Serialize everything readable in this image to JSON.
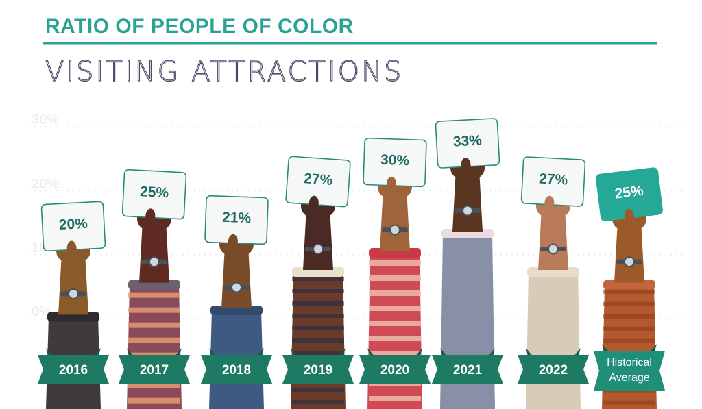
{
  "header": {
    "title": "RATIO OF PEOPLE OF COLOR",
    "subtitle": "VISITING ATTRACTIONS"
  },
  "colors": {
    "accent": "#2aa395",
    "ribbon": "#1f7a63",
    "card_text": "#1f6b62"
  },
  "chart_data": {
    "type": "bar",
    "title": "RATIO OF PEOPLE OF COLOR VISITING ATTRACTIONS",
    "categories": [
      "2016",
      "2017",
      "2018",
      "2019",
      "2020",
      "2021",
      "2022",
      "Historical Average"
    ],
    "values": [
      20,
      25,
      21,
      27,
      30,
      33,
      27,
      25
    ],
    "value_labels": [
      "20%",
      "25%",
      "21%",
      "27%",
      "30%",
      "33%",
      "27%",
      "25%"
    ],
    "y_ticks": [
      "0%",
      "10%",
      "20%",
      "30%"
    ],
    "ylim": [
      0,
      30
    ],
    "grid": true,
    "highlight_category": "Historical Average"
  }
}
